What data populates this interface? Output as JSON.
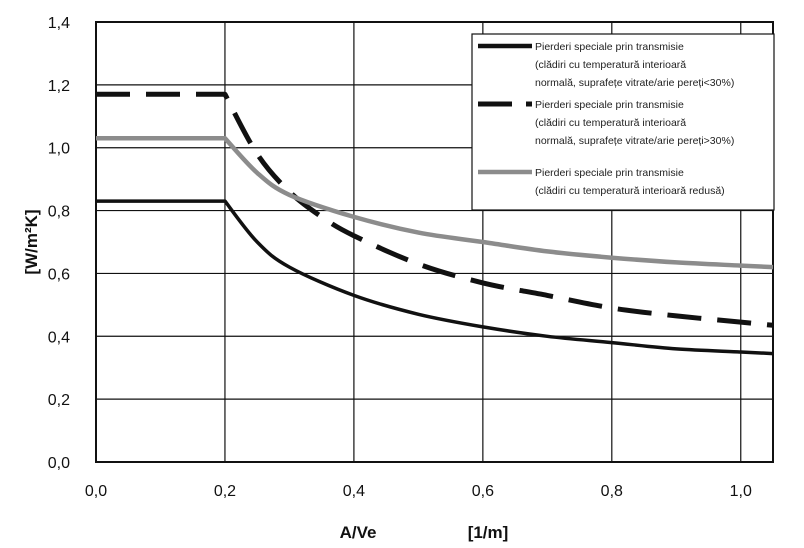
{
  "chart_data": {
    "type": "line",
    "xlabel": "A/Ve",
    "xunit": "[1/m]",
    "ylabel": "[W/m²K]",
    "xlim": [
      0.0,
      1.05
    ],
    "ylim": [
      0.0,
      1.4
    ],
    "xticks": [
      0.0,
      0.2,
      0.4,
      0.6,
      0.8,
      1.0
    ],
    "xtick_labels": [
      "0,0",
      "0,2",
      "0,4",
      "0,6",
      "0,8",
      "1,0"
    ],
    "yticks": [
      0.0,
      0.2,
      0.4,
      0.6,
      0.8,
      1.0,
      1.2,
      1.4
    ],
    "ytick_labels": [
      "0,0",
      "0,2",
      "0,4",
      "0,6",
      "0,8",
      "1,0",
      "1,2",
      "1,4"
    ],
    "grid": true,
    "legend_position": "top-right",
    "series": [
      {
        "name_lines": [
          "Pierderi speciale prin transmisie",
          "(clădiri cu temperatură interioară",
          "normală, suprafețe vitrate/arie pereți<30%)"
        ],
        "color": "#111111",
        "style": "solid",
        "x": [
          0.0,
          0.2,
          0.25,
          0.3,
          0.4,
          0.5,
          0.6,
          0.7,
          0.8,
          0.9,
          1.0,
          1.05
        ],
        "y": [
          0.83,
          0.83,
          0.7,
          0.62,
          0.53,
          0.47,
          0.43,
          0.4,
          0.38,
          0.36,
          0.35,
          0.345
        ]
      },
      {
        "name_lines": [
          "Pierderi speciale prin transmisie",
          "(clădiri cu temperatură interioară",
          "normală, suprafețe vitrate/arie pereți>30%)"
        ],
        "color": "#111111",
        "style": "dashed",
        "x": [
          0.0,
          0.2,
          0.25,
          0.3,
          0.35,
          0.4,
          0.5,
          0.6,
          0.7,
          0.8,
          0.9,
          1.0,
          1.05
        ],
        "y": [
          1.17,
          1.17,
          0.98,
          0.86,
          0.78,
          0.72,
          0.63,
          0.57,
          0.53,
          0.49,
          0.465,
          0.445,
          0.435
        ]
      },
      {
        "name_lines": [
          "Pierderi speciale prin transmisie",
          "(clădiri cu temperatură interioară redusă)"
        ],
        "color": "#8c8c8c",
        "style": "solid",
        "x": [
          0.0,
          0.2,
          0.25,
          0.3,
          0.4,
          0.5,
          0.6,
          0.7,
          0.8,
          0.9,
          1.0,
          1.05
        ],
        "y": [
          1.03,
          1.03,
          0.92,
          0.85,
          0.78,
          0.73,
          0.7,
          0.67,
          0.65,
          0.635,
          0.625,
          0.62
        ]
      }
    ]
  }
}
